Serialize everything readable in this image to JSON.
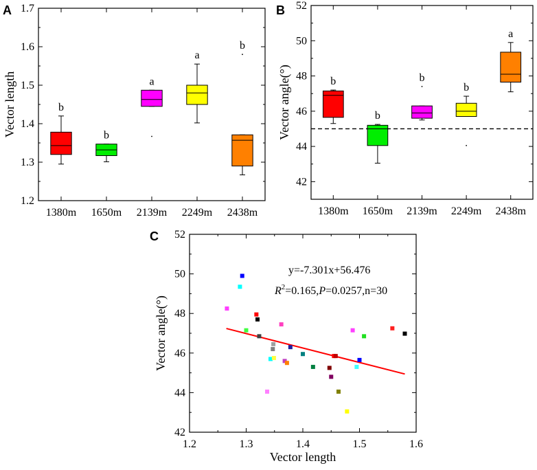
{
  "chart_data": [
    {
      "panel": "A",
      "type": "box",
      "title": "",
      "xlabel": "",
      "ylabel": "Vector length",
      "ylim": [
        1.2,
        1.7
      ],
      "yticks": [
        1.2,
        1.3,
        1.4,
        1.5,
        1.6,
        1.7
      ],
      "yticklabels": [
        "1.2",
        "1.3",
        "1.4",
        "1.5",
        "1.6",
        "1.7"
      ],
      "categories": [
        "1380m",
        "1650m",
        "2139m",
        "2249m",
        "2438m"
      ],
      "boxes": [
        {
          "q1": 1.32,
          "median": 1.343,
          "q3": 1.378,
          "whisker_low": 1.295,
          "whisker_high": 1.42,
          "outliers": [],
          "color": "#ff0000",
          "letter": "b"
        },
        {
          "q1": 1.317,
          "median": 1.332,
          "q3": 1.347,
          "whisker_low": 1.301,
          "whisker_high": 1.347,
          "outliers": [],
          "color": "#00ee00",
          "letter": "b"
        },
        {
          "q1": 1.445,
          "median": 1.463,
          "q3": 1.487,
          "whisker_low": 1.445,
          "whisker_high": 1.487,
          "outliers": [
            1.367
          ],
          "color": "#ff00ff",
          "letter": "a"
        },
        {
          "q1": 1.45,
          "median": 1.48,
          "q3": 1.5,
          "whisker_low": 1.402,
          "whisker_high": 1.555,
          "outliers": [],
          "color": "#ffff00",
          "letter": "a"
        },
        {
          "q1": 1.29,
          "median": 1.357,
          "q3": 1.371,
          "whisker_low": 1.267,
          "whisker_high": 1.371,
          "outliers": [
            1.58
          ],
          "color": "#ff8000",
          "letter": "b"
        }
      ]
    },
    {
      "panel": "B",
      "type": "box",
      "title": "",
      "xlabel": "",
      "ylabel": "Vector angle(°)",
      "ylim": [
        41,
        52
      ],
      "yticks": [
        42,
        44,
        46,
        48,
        50,
        52
      ],
      "yticklabels": [
        "42",
        "44",
        "46",
        "48",
        "50",
        "52"
      ],
      "reference_line": 45,
      "categories": [
        "1380m",
        "1650m",
        "2139m",
        "2249m",
        "2438m"
      ],
      "boxes": [
        {
          "q1": 45.65,
          "median": 46.9,
          "q3": 47.15,
          "whisker_low": 45.3,
          "whisker_high": 47.2,
          "outliers": [],
          "color": "#ff0000",
          "letter": "b"
        },
        {
          "q1": 44.05,
          "median": 45.0,
          "q3": 45.2,
          "whisker_low": 43.05,
          "whisker_high": 45.25,
          "outliers": [],
          "color": "#00ee00",
          "letter": "b"
        },
        {
          "q1": 45.6,
          "median": 45.9,
          "q3": 46.3,
          "whisker_low": 45.5,
          "whisker_high": 46.3,
          "outliers": [
            47.4
          ],
          "color": "#ff00ff",
          "letter": "b"
        },
        {
          "q1": 45.7,
          "median": 46.0,
          "q3": 46.45,
          "whisker_low": 45.7,
          "whisker_high": 46.85,
          "outliers": [
            44.05
          ],
          "color": "#ffff00",
          "letter": "b"
        },
        {
          "q1": 47.65,
          "median": 48.1,
          "q3": 49.35,
          "whisker_low": 47.1,
          "whisker_high": 49.9,
          "outliers": [],
          "color": "#ff8000",
          "letter": "a"
        }
      ]
    },
    {
      "panel": "C",
      "type": "scatter",
      "title": "",
      "xlabel": "Vector length",
      "ylabel": "Vector angle(°)",
      "xlim": [
        1.2,
        1.6
      ],
      "ylim": [
        42,
        52
      ],
      "xticks": [
        1.2,
        1.3,
        1.4,
        1.5,
        1.6
      ],
      "xticklabels": [
        "1.2",
        "1.3",
        "1.4",
        "1.5",
        "1.6"
      ],
      "yticks": [
        42,
        44,
        46,
        48,
        50,
        52
      ],
      "yticklabels": [
        "42",
        "44",
        "46",
        "48",
        "50",
        "52"
      ],
      "equation": "y=-7.301x+56.476",
      "stats_r2_prefix": "R",
      "stats_r2_sup": "2",
      "stats_r2_value": "=0.165,",
      "stats_p_label": "P",
      "stats_rest": "=0.0257,n=30",
      "fit": {
        "slope": -7.301,
        "intercept": 56.476,
        "x_range": [
          1.265,
          1.58
        ],
        "color": "#ff0000"
      },
      "points": [
        {
          "x": 1.293,
          "y": 49.9,
          "color": "#0000ff"
        },
        {
          "x": 1.289,
          "y": 49.35,
          "color": "#00ffff"
        },
        {
          "x": 1.266,
          "y": 48.25,
          "color": "#ff40ff"
        },
        {
          "x": 1.318,
          "y": 47.95,
          "color": "#ff0000"
        },
        {
          "x": 1.32,
          "y": 47.7,
          "color": "#000000"
        },
        {
          "x": 1.362,
          "y": 47.45,
          "color": "#ff40c0"
        },
        {
          "x": 1.3,
          "y": 47.15,
          "color": "#40ff40"
        },
        {
          "x": 1.488,
          "y": 47.15,
          "color": "#ff40ff"
        },
        {
          "x": 1.558,
          "y": 47.25,
          "color": "#ff2020"
        },
        {
          "x": 1.58,
          "y": 46.98,
          "color": "#000000"
        },
        {
          "x": 1.508,
          "y": 46.85,
          "color": "#20e020"
        },
        {
          "x": 1.323,
          "y": 46.85,
          "color": "#404040"
        },
        {
          "x": 1.348,
          "y": 46.45,
          "color": "#a0a0a0"
        },
        {
          "x": 1.347,
          "y": 46.2,
          "color": "#808080"
        },
        {
          "x": 1.378,
          "y": 46.3,
          "color": "#2020a0"
        },
        {
          "x": 1.4,
          "y": 45.95,
          "color": "#008080"
        },
        {
          "x": 1.455,
          "y": 45.85,
          "color": "#ff0000"
        },
        {
          "x": 1.458,
          "y": 45.85,
          "color": "#c00000"
        },
        {
          "x": 1.343,
          "y": 45.7,
          "color": "#00ffff"
        },
        {
          "x": 1.349,
          "y": 45.75,
          "color": "#ffff40"
        },
        {
          "x": 1.368,
          "y": 45.6,
          "color": "#c040c0"
        },
        {
          "x": 1.372,
          "y": 45.5,
          "color": "#ff8000"
        },
        {
          "x": 1.5,
          "y": 45.65,
          "color": "#0000ff"
        },
        {
          "x": 1.495,
          "y": 45.3,
          "color": "#40ffff"
        },
        {
          "x": 1.418,
          "y": 45.3,
          "color": "#008040"
        },
        {
          "x": 1.447,
          "y": 45.25,
          "color": "#800000"
        },
        {
          "x": 1.45,
          "y": 44.8,
          "color": "#800060"
        },
        {
          "x": 1.337,
          "y": 44.05,
          "color": "#ff80ff"
        },
        {
          "x": 1.463,
          "y": 44.05,
          "color": "#808000"
        },
        {
          "x": 1.478,
          "y": 43.05,
          "color": "#ffff00"
        }
      ]
    }
  ]
}
